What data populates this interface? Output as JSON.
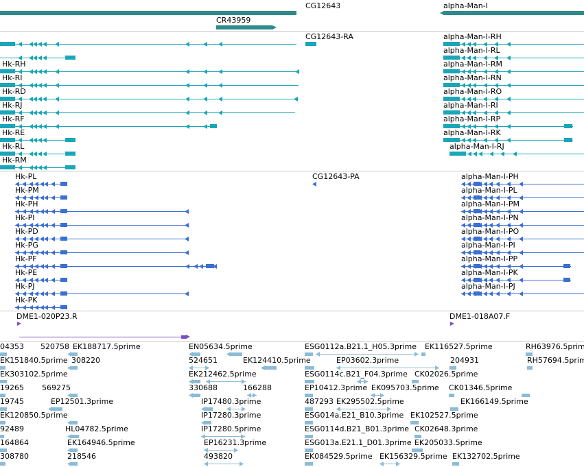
{
  "colors": {
    "gene": "#2e8b8b",
    "transcript": "#19a6b8",
    "protein": "#3a6fd4",
    "clone": "#7a4fc2",
    "est": "#8bbbd6",
    "separator": "#c8c8c8"
  },
  "tracks": {
    "genes": {
      "features": [
        {
          "label": ""
        },
        {
          "label": "CG12643"
        },
        {
          "label": "alpha-Man-I"
        },
        {
          "label": "CR43959"
        }
      ]
    },
    "transcripts": {
      "features": [
        {
          "label": ""
        },
        {
          "label": ""
        },
        {
          "label": "CG12643-RA"
        },
        {
          "label": "alpha-Man-I-RH"
        },
        {
          "label": "alpha-Man-I-RL"
        },
        {
          "label": "Hk-RH"
        },
        {
          "label": "alpha-Man-I-RM"
        },
        {
          "label": "Hk-RI"
        },
        {
          "label": "alpha-Man-I-RN"
        },
        {
          "label": "Hk-RD"
        },
        {
          "label": "alpha-Man-I-RO"
        },
        {
          "label": "Hk-RJ"
        },
        {
          "label": "alpha-Man-I-RI"
        },
        {
          "label": "Hk-RF"
        },
        {
          "label": "alpha-Man-I-RP"
        },
        {
          "label": "Hk-RE"
        },
        {
          "label": "alpha-Man-I-RK"
        },
        {
          "label": "Hk-RL"
        },
        {
          "label": "alpha-Man-I-RJ"
        },
        {
          "label": "Hk-RM"
        }
      ]
    },
    "proteins": {
      "features": [
        {
          "label": "Hk-PL"
        },
        {
          "label": "CG12643-PA"
        },
        {
          "label": "alpha-Man-I-PH"
        },
        {
          "label": "Hk-PM"
        },
        {
          "label": "alpha-Man-I-PL"
        },
        {
          "label": "Hk-PH"
        },
        {
          "label": "alpha-Man-I-PM"
        },
        {
          "label": "Hk-PI"
        },
        {
          "label": "alpha-Man-I-PN"
        },
        {
          "label": "Hk-PD"
        },
        {
          "label": "alpha-Man-I-PO"
        },
        {
          "label": "Hk-PG"
        },
        {
          "label": "alpha-Man-I-PI"
        },
        {
          "label": "Hk-PF"
        },
        {
          "label": "alpha-Man-I-PP"
        },
        {
          "label": "Hk-PE"
        },
        {
          "label": "alpha-Man-I-PK"
        },
        {
          "label": "Hk-PJ"
        },
        {
          "label": "alpha-Man-I-PJ"
        },
        {
          "label": "Hk-PK"
        }
      ]
    },
    "clones": {
      "features": [
        {
          "label": "DME1-020P23.R"
        },
        {
          "label": "DME1-018A07.F"
        },
        {
          "label": ""
        }
      ]
    },
    "ests": {
      "features": [
        {
          "label": "04353"
        },
        {
          "label": "520758"
        },
        {
          "label": "EK188717.5prime"
        },
        {
          "label": "EN05634.5prime"
        },
        {
          "label": "ESG0112a.B21.1_H05.3prime"
        },
        {
          "label": "EK116527.5prime"
        },
        {
          "label": "RH63976.5prime"
        },
        {
          "label": "EK151840.5prime"
        },
        {
          "label": "308220"
        },
        {
          "label": "524651"
        },
        {
          "label": "EK124410.5prime"
        },
        {
          "label": "EP03602.3prime"
        },
        {
          "label": "204931"
        },
        {
          "label": "RH57694.5prime"
        },
        {
          "label": "EK303102.5prime"
        },
        {
          "label": "EK212462.5prime"
        },
        {
          "label": "ESG0114c.B21_F04.3prime"
        },
        {
          "label": "CK02026.5prime"
        },
        {
          "label": "19265"
        },
        {
          "label": "569275"
        },
        {
          "label": "330688"
        },
        {
          "label": "166288"
        },
        {
          "label": "EP10412.3prime"
        },
        {
          "label": "EK095703.5prime"
        },
        {
          "label": "CK01346.5prime"
        },
        {
          "label": "19745"
        },
        {
          "label": "EP12501.3prime"
        },
        {
          "label": "IP17480.3prime"
        },
        {
          "label": "487293"
        },
        {
          "label": "EK295502.5prime"
        },
        {
          "label": "EK166149.5prime"
        },
        {
          "label": "EK120850.5prime"
        },
        {
          "label": "IP17280.3prime"
        },
        {
          "label": "ESG014a.E21_B10.3prime"
        },
        {
          "label": "EK102527.5prime"
        },
        {
          "label": "92489"
        },
        {
          "label": "HL04782.5prime"
        },
        {
          "label": "IP17280.5prime"
        },
        {
          "label": "ESG0114d.B21_B01.3prime"
        },
        {
          "label": "CK02648.3prime"
        },
        {
          "label": "164864"
        },
        {
          "label": "EK164946.5prime"
        },
        {
          "label": "EP16231.3prime"
        },
        {
          "label": "ESG013a.E21.1_D01.3prime"
        },
        {
          "label": "EK205033.5prime"
        },
        {
          "label": "308780"
        },
        {
          "label": "218546"
        },
        {
          "label": "493820"
        },
        {
          "label": "EK084529.5prime"
        },
        {
          "label": "EK156329.5prime"
        },
        {
          "label": "EK132702.5prime"
        }
      ]
    }
  }
}
